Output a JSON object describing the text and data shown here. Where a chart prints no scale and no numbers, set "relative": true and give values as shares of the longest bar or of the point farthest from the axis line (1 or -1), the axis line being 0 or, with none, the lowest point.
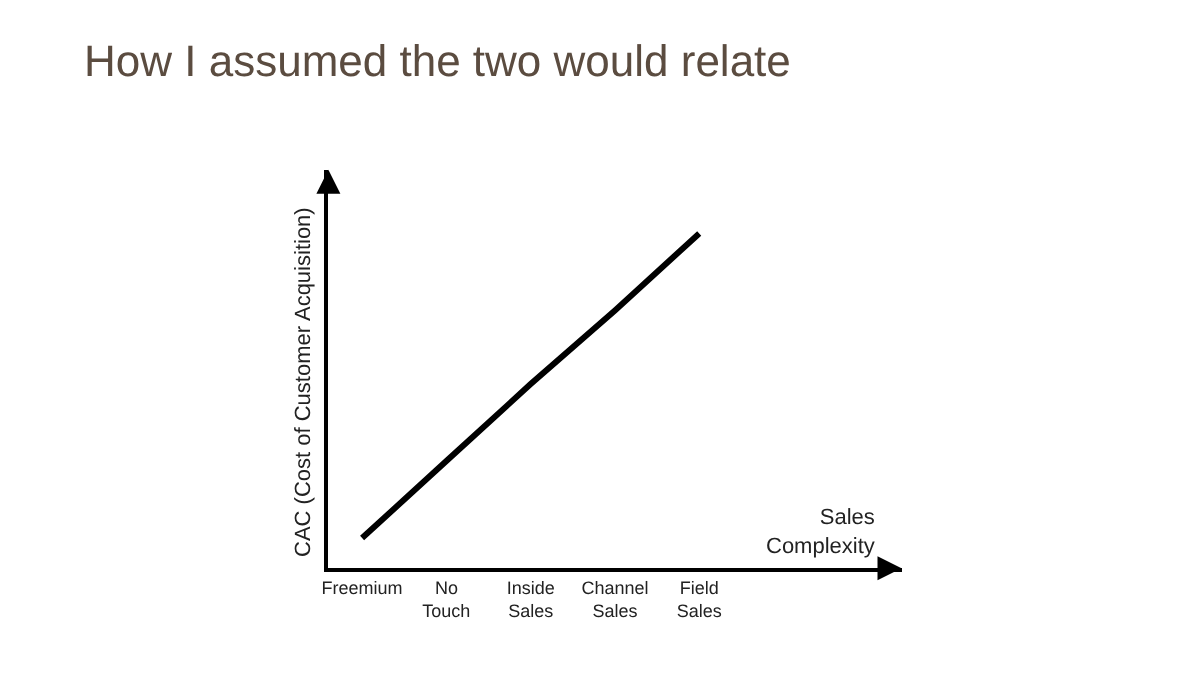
{
  "chart_data": {
    "type": "line",
    "title": "How I assumed the two would relate",
    "xlabel": "Sales Complexity",
    "ylabel": "CAC (Cost of Customer Acquisition)",
    "relative": true,
    "categories": [
      "Freemium",
      "No Touch",
      "Inside Sales",
      "Channel Sales",
      "Field Sales"
    ],
    "series": [
      {
        "color": "#000000",
        "values": [
          0.09,
          0.32,
          0.55,
          0.77,
          1
        ]
      }
    ],
    "marker": "none",
    "line_style": "solid"
  }
}
